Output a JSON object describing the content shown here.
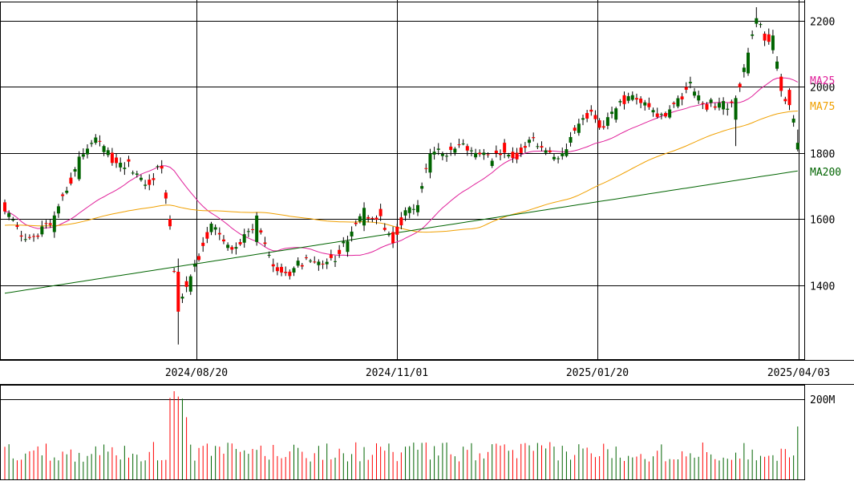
{
  "chart_data": {
    "type": "candlestick",
    "price_axis": {
      "ticks": [
        1400,
        1600,
        1800,
        2000,
        2200
      ],
      "range": [
        1220,
        2240
      ]
    },
    "date_axis": {
      "tick_labels": [
        "2024/08/20",
        "2024/11/01",
        "2025/01/20",
        "2025/04/03"
      ]
    },
    "volume_axis": {
      "tick_label": "200M",
      "max": 200
    },
    "moving_averages": [
      {
        "label": "MA25",
        "color": "#e0209a",
        "last": 2010
      },
      {
        "label": "MA75",
        "color": "#f0a000",
        "last": 1940
      },
      {
        "label": "MA200",
        "color": "#006400",
        "last": 1745
      }
    ],
    "colors": {
      "up": "#006400",
      "down": "#ff0000",
      "grid": "#000000"
    },
    "ohlc_anchors": [
      [
        0,
        1650,
        1620
      ],
      [
        6,
        1545,
        1530
      ],
      [
        12,
        1560,
        1600
      ],
      [
        18,
        1720,
        1780
      ],
      [
        22,
        1830,
        1840
      ],
      [
        26,
        1800,
        1780
      ],
      [
        30,
        1780,
        1760
      ],
      [
        34,
        1700,
        1700
      ],
      [
        38,
        1760,
        1760
      ],
      [
        40,
        1600,
        1580
      ],
      [
        42,
        1440,
        1330
      ],
      [
        45,
        1380,
        1430
      ],
      [
        50,
        1560,
        1580
      ],
      [
        56,
        1510,
        1500
      ],
      [
        61,
        1530,
        1600
      ],
      [
        64,
        1490,
        1480
      ],
      [
        68,
        1440,
        1430
      ],
      [
        72,
        1460,
        1470
      ],
      [
        76,
        1460,
        1470
      ],
      [
        80,
        1470,
        1480
      ],
      [
        83,
        1500,
        1540
      ],
      [
        87,
        1580,
        1620
      ],
      [
        91,
        1630,
        1600
      ],
      [
        94,
        1560,
        1540
      ],
      [
        97,
        1610,
        1620
      ],
      [
        100,
        1620,
        1640
      ],
      [
        103,
        1740,
        1800
      ],
      [
        106,
        1790,
        1800
      ],
      [
        109,
        1800,
        1810
      ],
      [
        112,
        1820,
        1820
      ],
      [
        115,
        1800,
        1790
      ],
      [
        118,
        1760,
        1790
      ],
      [
        121,
        1830,
        1810
      ],
      [
        124,
        1800,
        1790
      ],
      [
        127,
        1830,
        1850
      ],
      [
        130,
        1820,
        1810
      ],
      [
        133,
        1780,
        1790
      ],
      [
        136,
        1790,
        1810
      ],
      [
        139,
        1860,
        1900
      ],
      [
        142,
        1930,
        1920
      ],
      [
        145,
        1880,
        1870
      ],
      [
        148,
        1900,
        1940
      ],
      [
        152,
        1960,
        1980
      ],
      [
        156,
        1950,
        1940
      ],
      [
        160,
        1920,
        1900
      ],
      [
        163,
        1940,
        1960
      ],
      [
        166,
        2010,
        2000
      ],
      [
        169,
        1950,
        1940
      ],
      [
        172,
        1940,
        1950
      ],
      [
        175,
        1930,
        1940
      ],
      [
        177,
        1900,
        1960
      ],
      [
        180,
        2040,
        2100
      ],
      [
        182,
        2190,
        2200
      ],
      [
        184,
        2160,
        2150
      ],
      [
        186,
        2110,
        2140
      ],
      [
        188,
        2030,
        1990
      ],
      [
        190,
        1990,
        1950
      ],
      [
        192,
        1810,
        1830
      ]
    ]
  }
}
